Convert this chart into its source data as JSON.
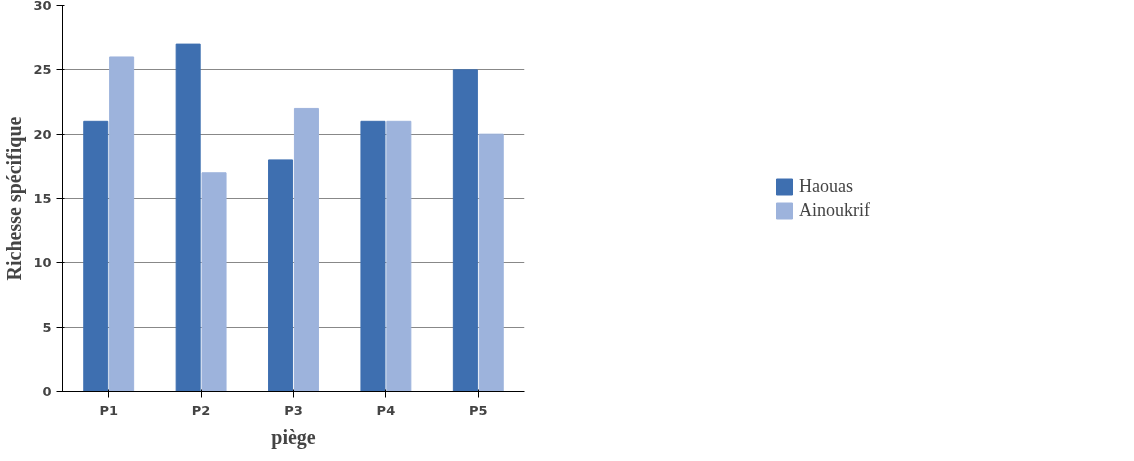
{
  "chart_data": {
    "type": "bar",
    "xlabel": "piège",
    "ylabel": "Richesse spécifique",
    "categories": [
      "P1",
      "P2",
      "P3",
      "P4",
      "P5"
    ],
    "series": [
      {
        "name": "Haouas",
        "color": "#3e6fb0",
        "values": [
          21,
          27,
          18,
          21,
          25
        ]
      },
      {
        "name": "Ainoukrif",
        "color": "#9db3dc",
        "values": [
          26,
          17,
          22,
          21,
          20
        ]
      }
    ],
    "ylim": [
      0,
      30
    ],
    "yticks": [
      0,
      5,
      10,
      15,
      20,
      25,
      30
    ],
    "grid": "y",
    "legend": "right"
  }
}
